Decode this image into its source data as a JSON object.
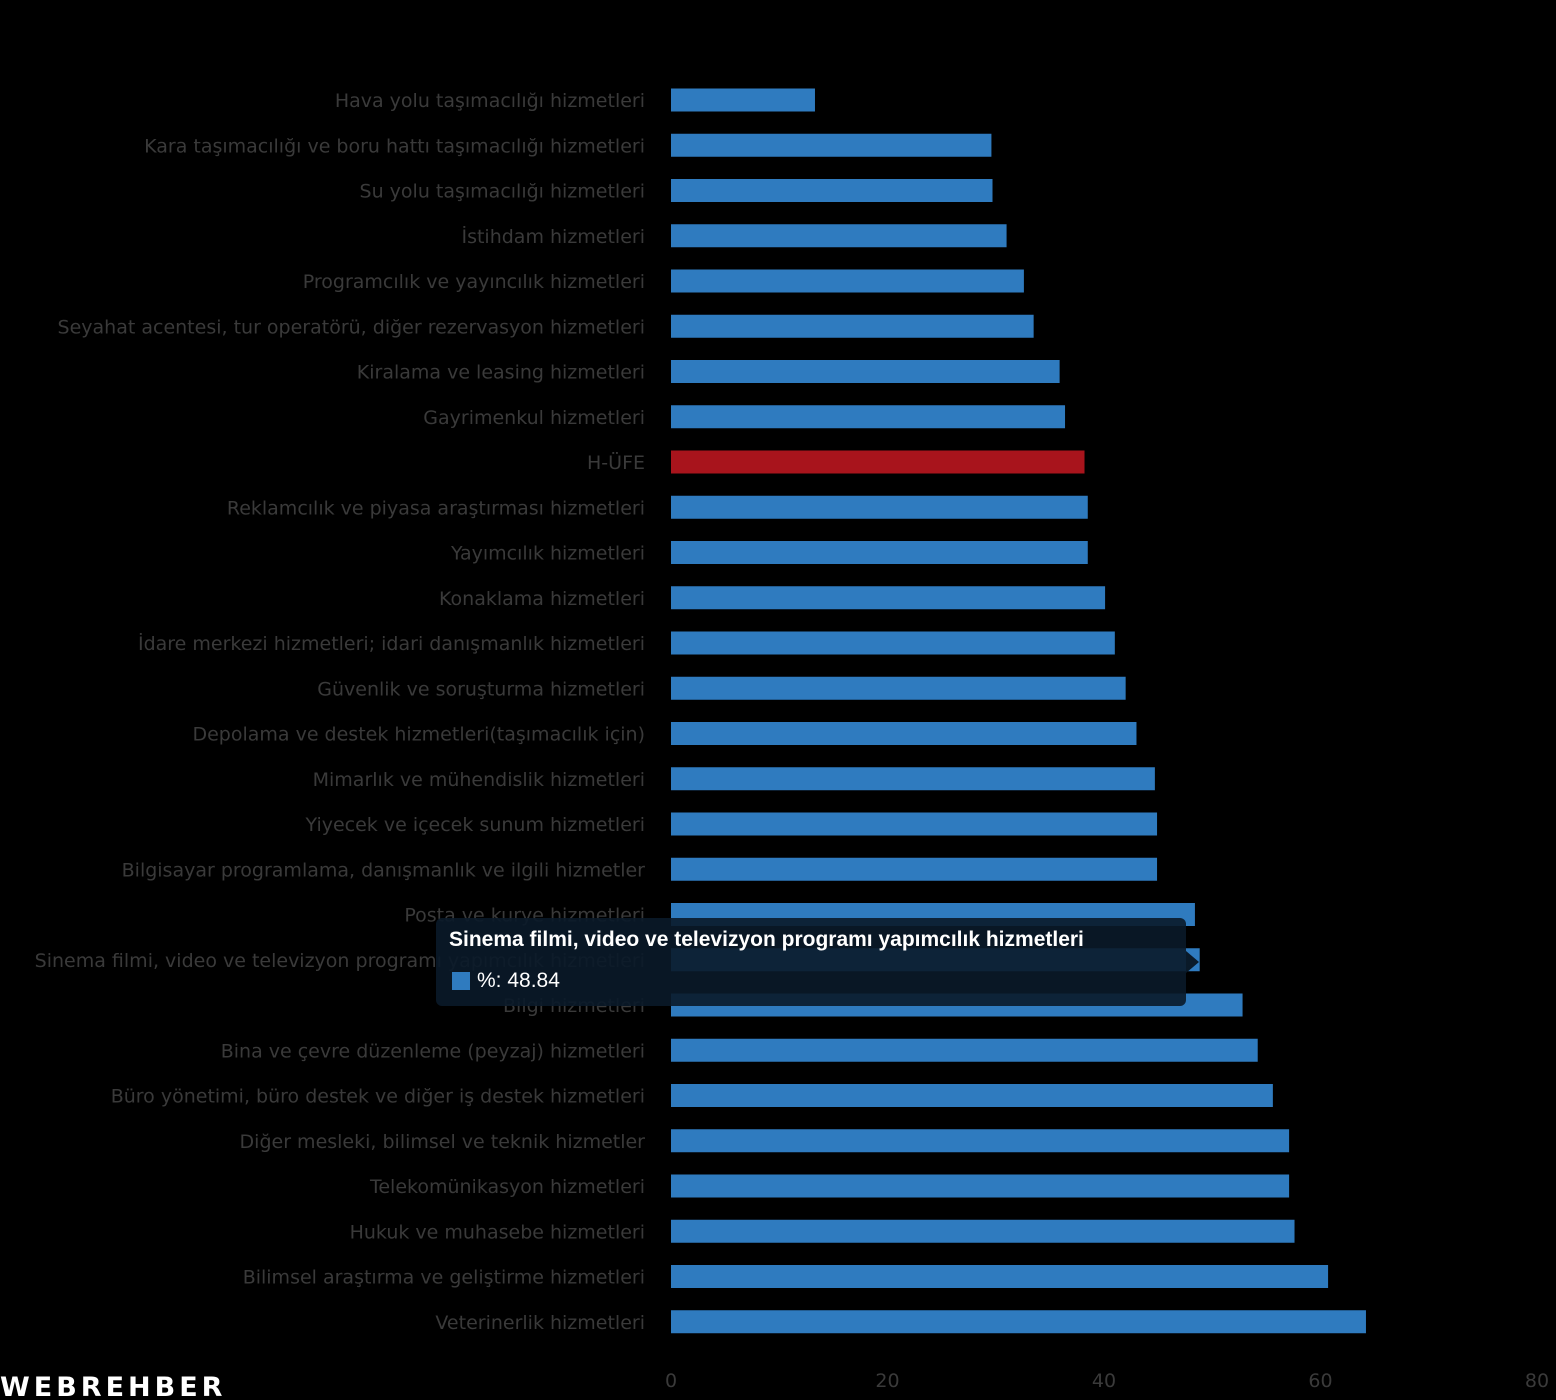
{
  "colors": {
    "background": "#000000",
    "bar": "#2f7bbf",
    "highlight_bar": "#a8141c",
    "label_text": "#3a3a3a",
    "tooltip_bg": "#0a1a29",
    "tooltip_text": "#ffffff"
  },
  "logo": {
    "text": "WEBREHBER",
    "icon": "webrehber-logo-icon"
  },
  "tooltip": {
    "title": "Sinema filmi, video ve televizyon programı yapımcılık hizmetleri",
    "series_label": "%",
    "value": "48.84",
    "text": "%: 48.84"
  },
  "chart_data": {
    "type": "bar",
    "orientation": "horizontal",
    "categories": [
      "Hava yolu taşımacılığı hizmetleri",
      "Kara taşımacılığı ve boru hattı taşımacılığı hizmetleri",
      "Su yolu taşımacılığı hizmetleri",
      "İstihdam hizmetleri",
      "Programcılık ve yayıncılık hizmetleri",
      "Seyahat acentesi, tur operatörü, diğer rezervasyon hizmetleri",
      "Kiralama ve leasing hizmetleri",
      "Gayrimenkul hizmetleri",
      "H-ÜFE",
      "Reklamcılık ve piyasa araştırması hizmetleri",
      "Yayımcılık hizmetleri",
      "Konaklama hizmetleri",
      "İdare merkezi hizmetleri; idari danışmanlık hizmetleri",
      "Güvenlik ve soruşturma hizmetleri",
      "Depolama ve destek hizmetleri(taşımacılık için)",
      "Mimarlık ve mühendislik hizmetleri",
      "Yiyecek ve içecek sunum hizmetleri",
      "Bilgisayar programlama, danışmanlık ve ilgili hizmetler",
      "Posta ve kurye hizmetleri",
      "Sinema filmi, video ve televizyon programı yapımcılık hizmetleri",
      "Bilgi hizmetleri",
      "Bina ve çevre düzenleme (peyzaj) hizmetleri",
      "Büro yönetimi, büro destek ve diğer iş destek hizmetleri",
      "Diğer mesleki, bilimsel ve teknik hizmetler",
      "Telekomünikasyon hizmetleri",
      "Hukuk ve muhasebe hizmetleri",
      "Bilimsel araştırma ve geliştirme hizmetleri",
      "Veterinerlik hizmetleri"
    ],
    "series": [
      {
        "name": "%",
        "values": [
          13.3,
          29.6,
          29.7,
          31.0,
          32.6,
          33.5,
          35.9,
          36.4,
          38.2,
          38.5,
          38.5,
          40.1,
          41.0,
          42.0,
          43.0,
          44.7,
          44.9,
          44.9,
          48.4,
          48.84,
          52.8,
          54.2,
          55.6,
          57.1,
          57.1,
          57.6,
          60.7,
          64.2
        ]
      }
    ],
    "highlight_category": "H-ÜFE",
    "hovered_category": "Sinema filmi, video ve televizyon programı yapımcılık hizmetleri",
    "xlim": [
      0,
      80
    ],
    "xticks": [
      "0",
      "20",
      "40",
      "60",
      "80"
    ],
    "grid": false,
    "legend": "none"
  }
}
